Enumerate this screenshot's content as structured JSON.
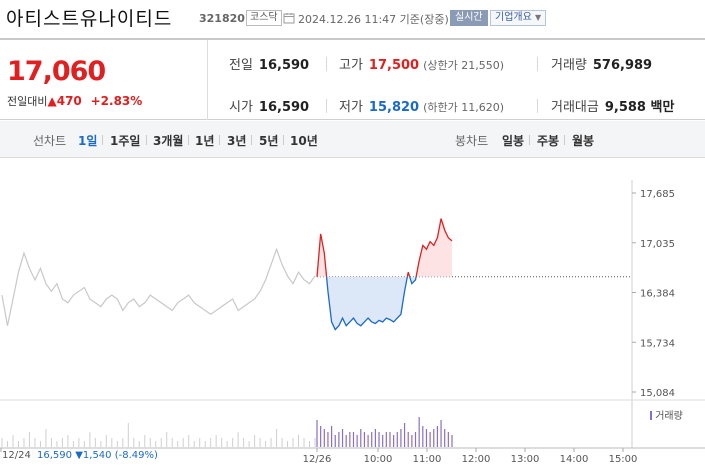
{
  "header": {
    "name": "아티스트유나이티드",
    "code": "321820",
    "market": "코스닥",
    "datetime": "2024.12.26 11:47 기준(장중)",
    "realtime_label": "실시간",
    "info_label": "기업개요"
  },
  "price": {
    "current": "17,060",
    "change_label": "전일대비",
    "change_amount": "470",
    "change_pct": "+2.83%"
  },
  "stats": {
    "prev_close": {
      "label": "전일",
      "value": "16,590"
    },
    "high": {
      "label": "고가",
      "value": "17,500",
      "sub": "(상한가 21,550)"
    },
    "volume": {
      "label": "거래량",
      "value": "576,989"
    },
    "open": {
      "label": "시가",
      "value": "16,590"
    },
    "low": {
      "label": "저가",
      "value": "15,820",
      "sub": "(하한가 11,620)"
    },
    "amount": {
      "label": "거래대금",
      "value": "9,588 백만"
    }
  },
  "tabs": {
    "line_label": "선차트",
    "line_tabs": [
      "1일",
      "1주일",
      "3개월",
      "1년",
      "3년",
      "5년",
      "10년"
    ],
    "candle_label": "봉차트",
    "candle_tabs": [
      "일봉",
      "주봉",
      "월봉"
    ],
    "selected": "1일"
  },
  "chart_data": {
    "type": "line",
    "reference_price": 16590,
    "ylim": [
      15084,
      17685
    ],
    "y_ticks": [
      "17,685",
      "17,035",
      "16,384",
      "15,734",
      "15,084"
    ],
    "x_ticks": [
      "12/26",
      "10:00",
      "11:00",
      "12:00",
      "13:00",
      "14:00",
      "15:00"
    ],
    "volume_legend": "거래량",
    "prev_day_label": "12/24",
    "prev_day_close": "16,590",
    "prev_day_change": "1,540",
    "prev_day_pct": "(-8.49%)",
    "colors": {
      "up": "#e02020",
      "down": "#1b6ac9",
      "up_fill": "#fde3e3",
      "down_fill": "#dce8f7",
      "prev": "#c8c8c8"
    },
    "prev_day_series": [
      16350,
      15950,
      16300,
      16650,
      16900,
      16700,
      16550,
      16700,
      16500,
      16400,
      16500,
      16300,
      16250,
      16350,
      16400,
      16450,
      16300,
      16250,
      16200,
      16300,
      16350,
      16300,
      16150,
      16250,
      16300,
      16200,
      16250,
      16350,
      16300,
      16250,
      16200,
      16150,
      16250,
      16300,
      16350,
      16250,
      16200,
      16150,
      16100,
      16150,
      16200,
      16250,
      16300,
      16150,
      16200,
      16250,
      16300,
      16400,
      16550,
      16750,
      16950,
      16750,
      16600,
      16500,
      16650,
      16550,
      16500,
      16600
    ],
    "today_series": [
      16590,
      17150,
      16900,
      16400,
      16000,
      15900,
      15950,
      16050,
      15950,
      16000,
      16050,
      15980,
      15950,
      16000,
      16050,
      16000,
      15980,
      16020,
      16000,
      16050,
      16030,
      16000,
      16050,
      16100,
      16400,
      16650,
      16500,
      16550,
      16800,
      17000,
      16950,
      17050,
      17000,
      17100,
      17350,
      17200,
      17100,
      17060
    ],
    "prev_volume": [
      3,
      2,
      4,
      2,
      3,
      5,
      3,
      2,
      6,
      3,
      2,
      3,
      4,
      2,
      3,
      2,
      5,
      3,
      2,
      4,
      3,
      2,
      3,
      8,
      3,
      2,
      4,
      3,
      2,
      3,
      5,
      3,
      2,
      3,
      4,
      2,
      3,
      2,
      3,
      4,
      3,
      2,
      3,
      5,
      3,
      2,
      4,
      3,
      2,
      3,
      6,
      3,
      2,
      3,
      4,
      3,
      2,
      3
    ],
    "today_volume": [
      9,
      7,
      6,
      5,
      7,
      4,
      5,
      6,
      4,
      5,
      5,
      4,
      6,
      5,
      4,
      5,
      6,
      5,
      4,
      5,
      5,
      4,
      5,
      6,
      8,
      5,
      4,
      5,
      10,
      7,
      6,
      5,
      6,
      7,
      9,
      6,
      5,
      4
    ]
  }
}
